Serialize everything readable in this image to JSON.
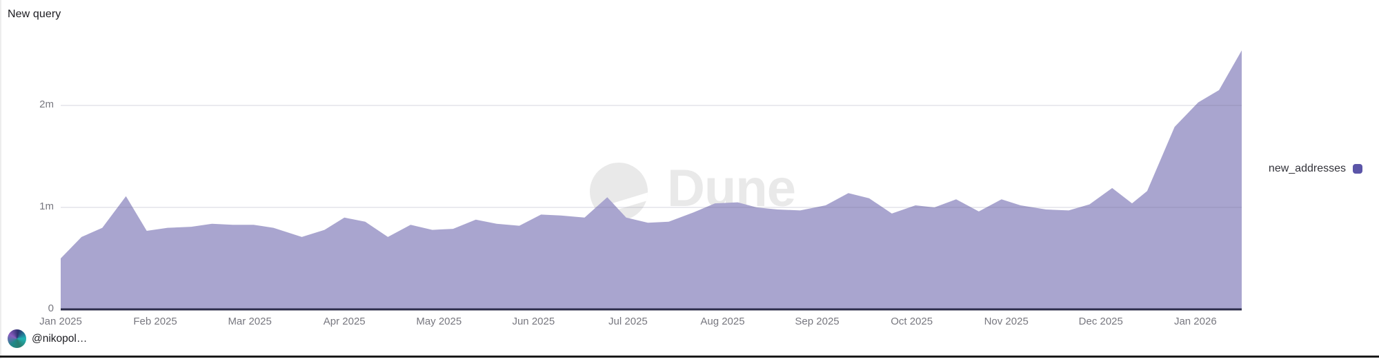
{
  "header": {
    "title": "New query"
  },
  "watermark": {
    "text": "Dune"
  },
  "legend": {
    "label": "new_addresses",
    "marker_color": "#5b55a8"
  },
  "attribution": {
    "handle": "@nikopol…"
  },
  "colors": {
    "area_fill": "#a9a5cf",
    "baseline": "#2c2c4a",
    "gridline": "rgba(106,106,138,0.18)",
    "tick_text": "#77777f",
    "title_text": "#1b1b20",
    "watermark_gray": "#e9e9e9"
  },
  "chart_data": {
    "type": "area",
    "title": "New query",
    "xlabel": "",
    "ylabel": "",
    "y_unit": "millions (m)",
    "x_unit": "months since Jan 2025 (weekly points)",
    "grid": "horizontal",
    "legend_position": "right",
    "ylim": [
      0,
      2.7
    ],
    "x_range_months": [
      0,
      12.49
    ],
    "x_ticks": [
      "Jan 2025",
      "Feb 2025",
      "Mar 2025",
      "Apr 2025",
      "May 2025",
      "Jun 2025",
      "Jul 2025",
      "Aug 2025",
      "Sep 2025",
      "Oct 2025",
      "Nov 2025",
      "Dec 2025",
      "Jan 2026"
    ],
    "x_tick_positions_months": [
      0,
      1,
      2,
      3,
      4,
      5,
      6,
      7,
      8,
      9,
      10,
      11,
      12
    ],
    "y_ticks": [
      {
        "v": 0,
        "label": "0"
      },
      {
        "v": 1,
        "label": "1m"
      },
      {
        "v": 2,
        "label": "2m"
      }
    ],
    "series": [
      {
        "name": "new_addresses",
        "color": "#a9a5cf",
        "points": [
          [
            0.0,
            0.5
          ],
          [
            0.22,
            0.71
          ],
          [
            0.44,
            0.8
          ],
          [
            0.69,
            1.11
          ],
          [
            0.91,
            0.77
          ],
          [
            1.13,
            0.8
          ],
          [
            1.38,
            0.81
          ],
          [
            1.6,
            0.84
          ],
          [
            1.82,
            0.83
          ],
          [
            2.04,
            0.83
          ],
          [
            2.25,
            0.8
          ],
          [
            2.55,
            0.71
          ],
          [
            2.79,
            0.78
          ],
          [
            3.0,
            0.9
          ],
          [
            3.22,
            0.86
          ],
          [
            3.46,
            0.71
          ],
          [
            3.7,
            0.83
          ],
          [
            3.93,
            0.78
          ],
          [
            4.15,
            0.79
          ],
          [
            4.39,
            0.88
          ],
          [
            4.61,
            0.84
          ],
          [
            4.85,
            0.82
          ],
          [
            5.08,
            0.93
          ],
          [
            5.29,
            0.92
          ],
          [
            5.54,
            0.9
          ],
          [
            5.78,
            1.1
          ],
          [
            5.98,
            0.9
          ],
          [
            6.21,
            0.85
          ],
          [
            6.43,
            0.86
          ],
          [
            6.69,
            0.95
          ],
          [
            6.92,
            1.04
          ],
          [
            7.16,
            1.05
          ],
          [
            7.36,
            1.0
          ],
          [
            7.58,
            0.98
          ],
          [
            7.82,
            0.97
          ],
          [
            8.09,
            1.02
          ],
          [
            8.33,
            1.14
          ],
          [
            8.55,
            1.09
          ],
          [
            8.79,
            0.94
          ],
          [
            9.04,
            1.02
          ],
          [
            9.24,
            1.0
          ],
          [
            9.47,
            1.08
          ],
          [
            9.71,
            0.96
          ],
          [
            9.95,
            1.08
          ],
          [
            10.15,
            1.02
          ],
          [
            10.42,
            0.98
          ],
          [
            10.66,
            0.97
          ],
          [
            10.88,
            1.03
          ],
          [
            11.12,
            1.19
          ],
          [
            11.33,
            1.04
          ],
          [
            11.49,
            1.16
          ],
          [
            11.78,
            1.79
          ],
          [
            12.03,
            2.03
          ],
          [
            12.25,
            2.15
          ],
          [
            12.49,
            2.54
          ]
        ]
      }
    ]
  }
}
